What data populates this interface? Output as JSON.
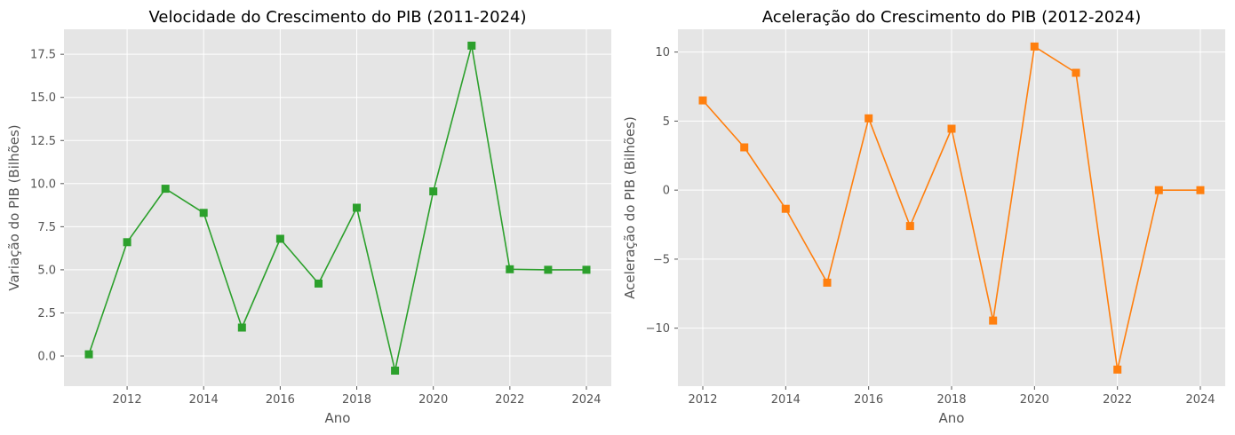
{
  "chart_data": [
    {
      "type": "line",
      "title": "Velocidade do Crescimento do PIB (2011-2024)",
      "xlabel": "Ano",
      "ylabel": "Variação do PIB (Bilhões)",
      "color": "#2ca02c",
      "marker": "square",
      "grid": true,
      "background": "#e5e5e5",
      "xlim": [
        2010.35,
        2024.65
      ],
      "ylim": [
        -1.75,
        18.95
      ],
      "xticks": [
        2012,
        2014,
        2016,
        2018,
        2020,
        2022,
        2024
      ],
      "xtick_labels": [
        "2012",
        "2014",
        "2016",
        "2018",
        "2020",
        "2022",
        "2024"
      ],
      "yticks": [
        0,
        2.5,
        5,
        7.5,
        10,
        12.5,
        15,
        17.5
      ],
      "ytick_labels": [
        "0.0",
        "2.5",
        "5.0",
        "7.5",
        "10.0",
        "12.5",
        "15.0",
        "17.5"
      ],
      "x": [
        2011,
        2012,
        2013,
        2014,
        2015,
        2016,
        2017,
        2018,
        2019,
        2020,
        2021,
        2022,
        2023,
        2024
      ],
      "y": [
        0.1,
        6.6,
        9.7,
        8.3,
        1.65,
        6.8,
        4.2,
        8.6,
        -0.85,
        9.55,
        18.0,
        5.03,
        5.0,
        5.0
      ]
    },
    {
      "type": "line",
      "title": "Aceleração do Crescimento do PIB (2012-2024)",
      "xlabel": "Ano",
      "ylabel": "Aceleração do PIB (Bilhões)",
      "color": "#ff7f0e",
      "marker": "square",
      "grid": true,
      "background": "#e5e5e5",
      "xlim": [
        2011.4,
        2024.6
      ],
      "ylim": [
        -14.2,
        11.65
      ],
      "xticks": [
        2012,
        2014,
        2016,
        2018,
        2020,
        2022,
        2024
      ],
      "xtick_labels": [
        "2012",
        "2014",
        "2016",
        "2018",
        "2020",
        "2022",
        "2024"
      ],
      "yticks": [
        -10,
        -5,
        0,
        5,
        10
      ],
      "ytick_labels": [
        "−10",
        "−5",
        "0",
        "5",
        "10"
      ],
      "x": [
        2012,
        2013,
        2014,
        2015,
        2016,
        2017,
        2018,
        2019,
        2020,
        2021,
        2022,
        2023,
        2024
      ],
      "y": [
        6.5,
        3.1,
        -1.35,
        -6.7,
        5.2,
        -2.6,
        4.45,
        -9.45,
        10.4,
        8.5,
        -13.0,
        0.0,
        0.0
      ]
    }
  ]
}
